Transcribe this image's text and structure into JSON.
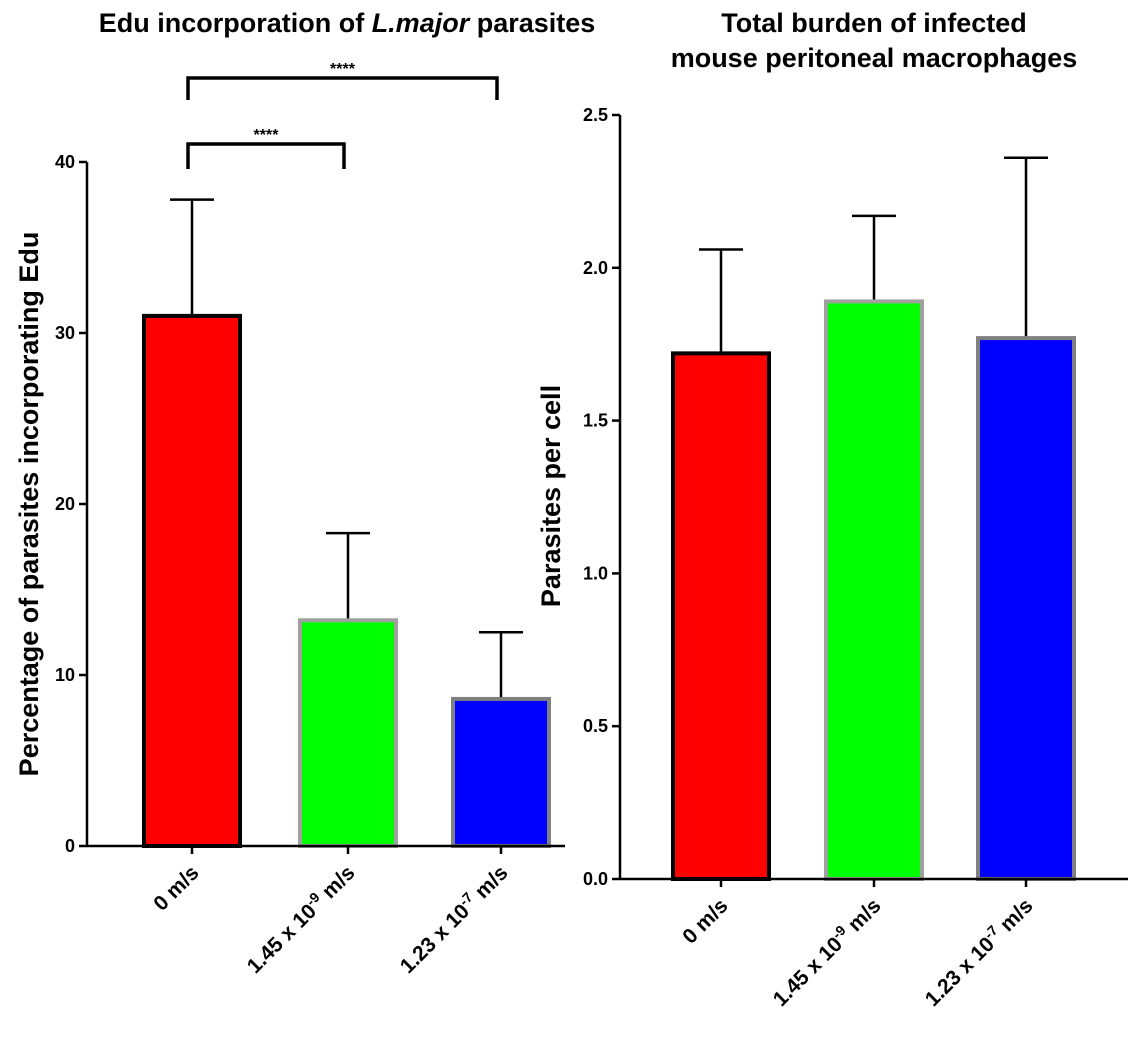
{
  "chart_data": [
    {
      "type": "bar",
      "title": "Edu incorporation of L.major parasites",
      "title_parts": {
        "pre": "Edu incorporation of ",
        "italic": "L.major",
        "post": " parasites"
      },
      "ylabel": "Percentage of parasites incorporating Edu",
      "xlabel": "",
      "ylim": [
        0,
        40
      ],
      "yticks": [
        "0",
        "10",
        "20",
        "30",
        "40"
      ],
      "grid": false,
      "categories": [
        {
          "base": "0 m/s",
          "exp": "",
          "unit": ""
        },
        {
          "base": "1.45 x 10",
          "exp": "-9",
          "unit": " m/s"
        },
        {
          "base": "1.23 x 10",
          "exp": "-7",
          "unit": " m/s"
        }
      ],
      "values": [
        31.0,
        13.2,
        8.6
      ],
      "errors": [
        6.8,
        5.1,
        3.9
      ],
      "fill_colors": [
        "#ff0000",
        "#00ff00",
        "#0000ff"
      ],
      "edge_colors": [
        "#000000",
        "#a0a0a0",
        "#808080"
      ],
      "significance": [
        {
          "from": 0,
          "to": 1,
          "label": "****"
        },
        {
          "from": 0,
          "to": 2,
          "label": "****"
        }
      ]
    },
    {
      "type": "bar",
      "title": "Total burden of infected mouse peritoneal macrophages",
      "title_lines": [
        "Total burden of infected",
        "mouse peritoneal macrophages"
      ],
      "ylabel": "Parasites per cell",
      "xlabel": "",
      "ylim": [
        0,
        2.5
      ],
      "yticks": [
        "0.0",
        "0.5",
        "1.0",
        "1.5",
        "2.0",
        "2.5"
      ],
      "grid": false,
      "categories": [
        {
          "base": "0 m/s",
          "exp": "",
          "unit": ""
        },
        {
          "base": "1.45 x 10",
          "exp": "-9",
          "unit": " m/s"
        },
        {
          "base": "1.23 x 10",
          "exp": "-7",
          "unit": " m/s"
        }
      ],
      "values": [
        1.72,
        1.89,
        1.77
      ],
      "errors": [
        0.34,
        0.28,
        0.59
      ],
      "fill_colors": [
        "#ff0000",
        "#00ff00",
        "#0000ff"
      ],
      "edge_colors": [
        "#000000",
        "#a0a0a0",
        "#808080"
      ]
    }
  ]
}
